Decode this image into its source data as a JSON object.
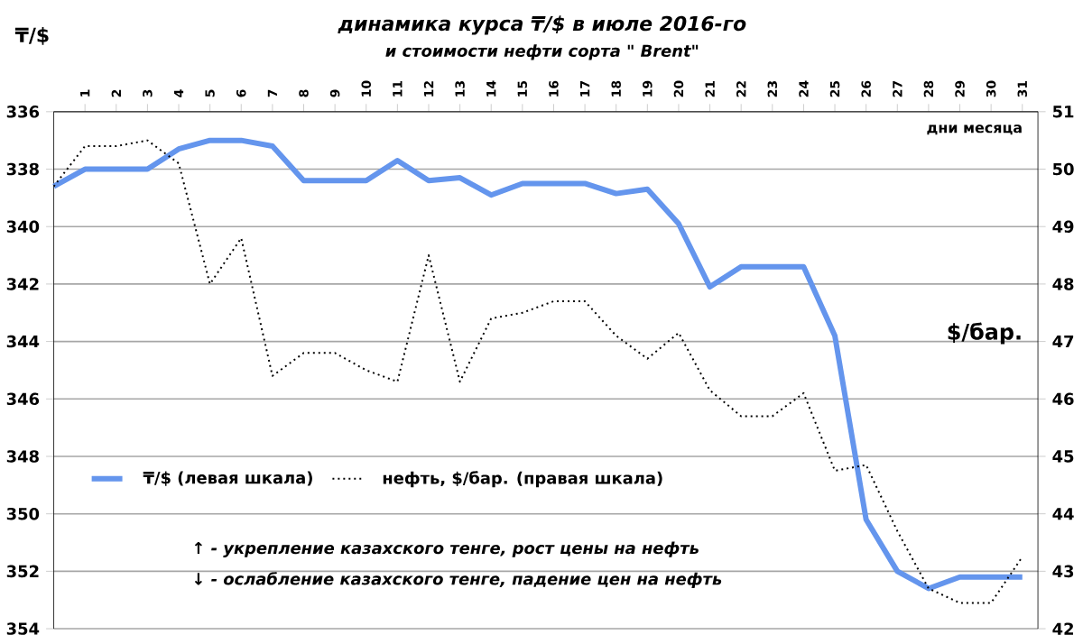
{
  "chart_data": {
    "type": "line",
    "title": "динамика курса ₸/$ в июле 2016-го",
    "subtitle": "и стоимости нефти сорта \" Brent\"",
    "xlabel": "дни месяца",
    "ylabel": "₸/$",
    "y2label": "$/бар.",
    "x": [
      0,
      1,
      2,
      3,
      4,
      5,
      6,
      7,
      8,
      9,
      10,
      11,
      12,
      13,
      14,
      15,
      16,
      17,
      18,
      19,
      20,
      21,
      22,
      23,
      24,
      25,
      26,
      27,
      28,
      29,
      30,
      31
    ],
    "xlim": [
      0,
      31.5
    ],
    "xticks": [
      1,
      2,
      3,
      4,
      5,
      6,
      7,
      8,
      9,
      10,
      11,
      12,
      13,
      14,
      15,
      16,
      17,
      18,
      19,
      20,
      21,
      22,
      23,
      24,
      25,
      26,
      27,
      28,
      29,
      30,
      31
    ],
    "ylim": [
      354,
      336
    ],
    "yticks": [
      336,
      338,
      340,
      342,
      344,
      346,
      348,
      350,
      352,
      354
    ],
    "y2lim": [
      42,
      51
    ],
    "y2ticks": [
      42,
      43,
      44,
      45,
      46,
      47,
      48,
      49,
      50,
      51
    ],
    "series": [
      {
        "name": "₸/$  (левая шкала)",
        "color": "#6495ed",
        "line_style": "solid",
        "values": [
          338.6,
          338.0,
          338.0,
          338.0,
          337.3,
          337.0,
          337.0,
          337.2,
          338.4,
          338.4,
          338.4,
          337.7,
          338.4,
          338.3,
          338.9,
          338.5,
          338.5,
          338.5,
          338.85,
          338.7,
          339.9,
          342.1,
          341.4,
          341.4,
          341.4,
          343.8,
          350.2,
          352.0,
          352.6,
          352.2,
          352.2,
          352.2
        ]
      },
      {
        "name": "нефть, $/бар. (правая шкала)",
        "color": "#000000",
        "line_style": "dotted",
        "axis": "y2",
        "values": [
          49.7,
          50.4,
          50.4,
          50.5,
          50.1,
          48.0,
          48.8,
          46.4,
          46.8,
          46.8,
          46.5,
          46.3,
          48.5,
          46.3,
          47.4,
          47.5,
          47.7,
          47.7,
          47.1,
          46.7,
          47.15,
          46.15,
          45.7,
          45.7,
          46.1,
          44.75,
          44.85,
          43.7,
          42.7,
          42.45,
          42.45,
          43.25
        ]
      }
    ],
    "grid": "y",
    "legend": "left",
    "marker": "none",
    "annotations": [
      "↑ - укрепление казахского тенге, рост цены на нефть",
      "↓ - ослабление казахского тенге, падение цен на нефть"
    ]
  }
}
